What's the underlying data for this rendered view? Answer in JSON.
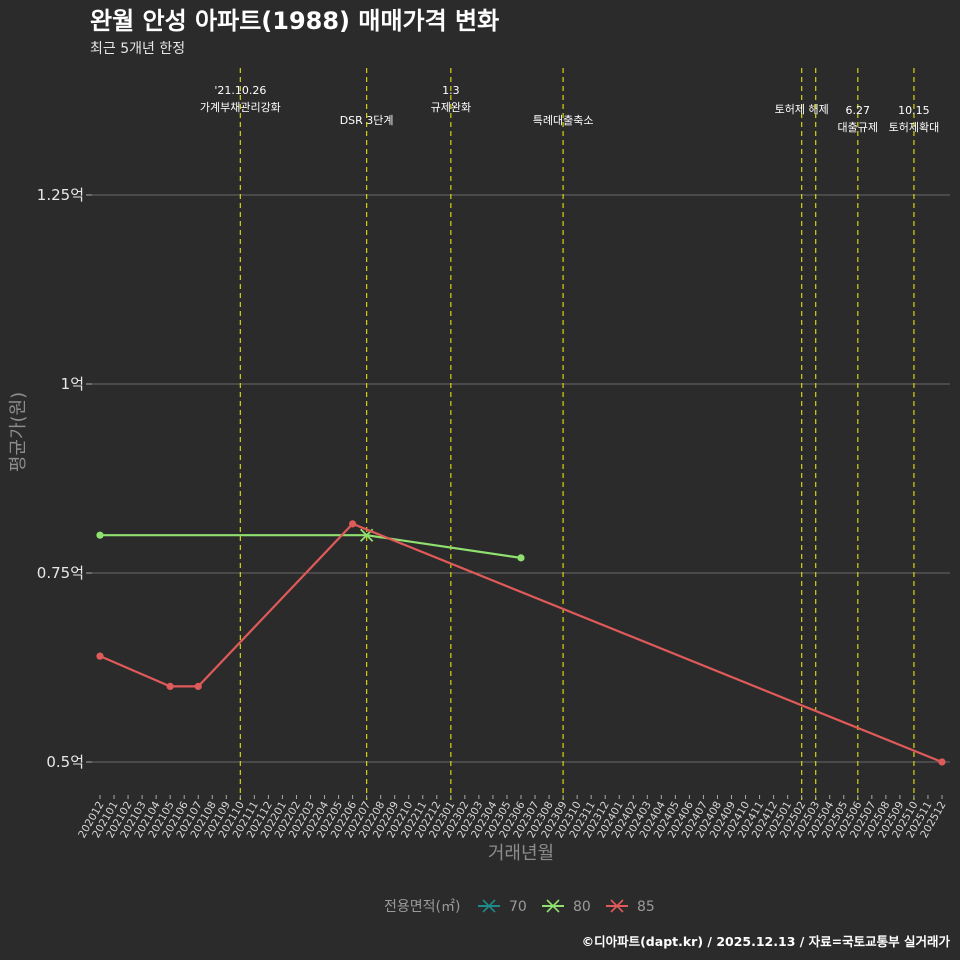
{
  "chart_data": {
    "type": "line",
    "title": "완월 안성 아파트(1988) 매매가격 변화",
    "subtitle": "최근 5개년 한정",
    "xlabel": "거래년월",
    "ylabel": "평균가(원)",
    "ylim": [
      0.46,
      1.45
    ],
    "yticks": [
      {
        "value": 0.5,
        "label": "0.5억"
      },
      {
        "value": 0.75,
        "label": "0.75억"
      },
      {
        "value": 1.0,
        "label": "1억"
      },
      {
        "value": 1.25,
        "label": "1.25억"
      }
    ],
    "categories": [
      "202012",
      "202101",
      "202102",
      "202103",
      "202104",
      "202105",
      "202106",
      "202107",
      "202108",
      "202109",
      "202110",
      "202111",
      "202112",
      "202201",
      "202202",
      "202203",
      "202204",
      "202205",
      "202206",
      "202207",
      "202208",
      "202209",
      "202210",
      "202211",
      "202212",
      "202301",
      "202302",
      "202303",
      "202304",
      "202305",
      "202306",
      "202307",
      "202308",
      "202309",
      "202310",
      "202311",
      "202312",
      "202401",
      "202402",
      "202403",
      "202404",
      "202405",
      "202406",
      "202407",
      "202408",
      "202409",
      "202410",
      "202411",
      "202412",
      "202501",
      "202502",
      "202503",
      "202504",
      "202505",
      "202506",
      "202507",
      "202508",
      "202509",
      "202510",
      "202511",
      "202512"
    ],
    "series": [
      {
        "name": "70",
        "color": "#1f8a8a",
        "points": []
      },
      {
        "name": "80",
        "color": "#90e070",
        "points": [
          {
            "x": "202012",
            "y": 0.8
          },
          {
            "x": "202207",
            "y": 0.8
          },
          {
            "x": "202306",
            "y": 0.77
          }
        ]
      },
      {
        "name": "85",
        "color": "#e05a5a",
        "points": [
          {
            "x": "202012",
            "y": 0.64
          },
          {
            "x": "202105",
            "y": 0.6
          },
          {
            "x": "202107",
            "y": 0.6
          },
          {
            "x": "202206",
            "y": 0.815
          },
          {
            "x": "202512",
            "y": 0.5
          }
        ]
      }
    ],
    "events": [
      {
        "x": "202110",
        "lines": [
          "'21.10.26",
          "가계부채관리강화"
        ],
        "pos": "high"
      },
      {
        "x": "202207",
        "lines": [
          "DSR 3단계"
        ],
        "pos": "low"
      },
      {
        "x": "202301",
        "lines": [
          "1.3",
          "규제완화"
        ],
        "pos": "high"
      },
      {
        "x": "202309",
        "lines": [
          "특례대출축소"
        ],
        "pos": "low"
      },
      {
        "x": "202502",
        "lines": [
          "토허제 해제"
        ],
        "pos": "mid"
      },
      {
        "x": "202503",
        "lines": [],
        "pos": "mid"
      },
      {
        "x": "202506",
        "lines": [
          "6.27",
          "대출규제"
        ],
        "pos": "low"
      },
      {
        "x": "202510",
        "lines": [
          "10.15",
          "토허제확대"
        ],
        "pos": "low"
      }
    ],
    "legend": {
      "title": "전용면적(㎡)",
      "position": "bottom"
    },
    "caption": "©디아파트(dapt.kr) / 2025.12.13 / 자료=국토교통부 실거래가"
  }
}
